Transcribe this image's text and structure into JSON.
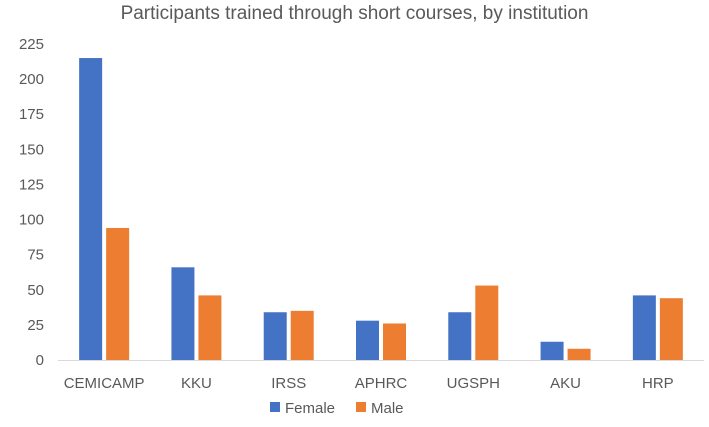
{
  "chart_data": {
    "type": "bar",
    "title": "Participants trained through short courses, by institution",
    "xlabel": "",
    "ylabel": "",
    "categories": [
      "CEMICAMP",
      "KKU",
      "IRSS",
      "APHRC",
      "UGSPH",
      "AKU",
      "HRP"
    ],
    "series": [
      {
        "name": "Female",
        "color": "#4472C4",
        "values": [
          215,
          66,
          34,
          28,
          34,
          13,
          46
        ]
      },
      {
        "name": "Male",
        "color": "#ED7D31",
        "values": [
          94,
          46,
          35,
          26,
          53,
          8,
          44
        ]
      }
    ],
    "ylim": [
      0,
      225
    ],
    "yticks": [
      0,
      25,
      50,
      75,
      100,
      125,
      150,
      175,
      200,
      225
    ],
    "grid": false,
    "legend_position": "bottom"
  }
}
